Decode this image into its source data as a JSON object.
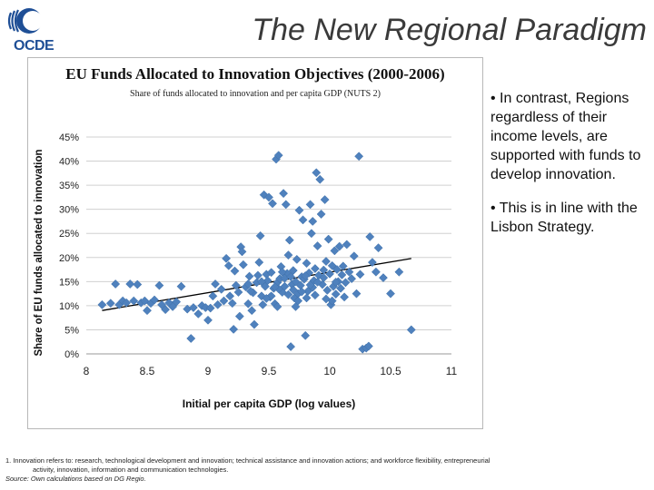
{
  "header": {
    "title": "The New Regional Paradigm",
    "logo_text": "OCDE",
    "logo_icon": "oecd-logo"
  },
  "bullets": [
    "• In contrast, Regions regardless of their income levels, are supported with funds to develop innovation.",
    "• This is in line with the Lisbon Strategy."
  ],
  "footnote": {
    "line1": "1.   Innovation refers to: research, technological development and innovation; technical assistance and innovation actions; and workforce flexibility, entrepreneurial",
    "line2": "activity, innovation, information and communication technologies.",
    "source": "Source: Own calculations based on DG Regio."
  },
  "chart_data": {
    "type": "scatter",
    "title": "EU Funds Allocated to Innovation Objectives (2000-2006)",
    "subtitle": "Share of funds allocated to innovation and per capita GDP (NUTS 2)",
    "xlabel": "Initial per capita GDP (log values)",
    "ylabel": "Share of EU funds allocated to innovation",
    "xlim": [
      8,
      11
    ],
    "ylim": [
      0,
      45
    ],
    "xticks": [
      8,
      8.5,
      9,
      9.5,
      10,
      10.5,
      11
    ],
    "xtick_labels": [
      "8",
      "8.5",
      "9",
      "9.5",
      "10",
      "10.5",
      "11"
    ],
    "yticks": [
      0,
      5,
      10,
      15,
      20,
      25,
      30,
      35,
      40,
      45
    ],
    "ytick_labels": [
      "0%",
      "5%",
      "10%",
      "15%",
      "20%",
      "25%",
      "30%",
      "35%",
      "40%",
      "45%"
    ],
    "grid": "horizontal",
    "marker_color": "#4f81bd",
    "trend_color": "#000000",
    "trendline": {
      "x": [
        8.13,
        10.67
      ],
      "y": [
        9.0,
        19.8
      ]
    },
    "points": [
      [
        8.13,
        10.2
      ],
      [
        8.2,
        10.5
      ],
      [
        8.24,
        14.5
      ],
      [
        8.27,
        10.2
      ],
      [
        8.3,
        11.0
      ],
      [
        8.33,
        10.6
      ],
      [
        8.36,
        14.5
      ],
      [
        8.39,
        11.0
      ],
      [
        8.42,
        14.4
      ],
      [
        8.45,
        10.6
      ],
      [
        8.48,
        11.0
      ],
      [
        8.5,
        9.0
      ],
      [
        8.53,
        10.5
      ],
      [
        8.56,
        11.2
      ],
      [
        8.6,
        14.2
      ],
      [
        8.62,
        10.2
      ],
      [
        8.65,
        9.2
      ],
      [
        8.68,
        10.6
      ],
      [
        8.71,
        9.8
      ],
      [
        8.74,
        10.8
      ],
      [
        8.78,
        14.0
      ],
      [
        8.83,
        9.3
      ],
      [
        8.86,
        3.2
      ],
      [
        8.88,
        9.6
      ],
      [
        8.92,
        8.3
      ],
      [
        8.95,
        10.0
      ],
      [
        8.98,
        9.6
      ],
      [
        9.0,
        7.0
      ],
      [
        9.02,
        9.5
      ],
      [
        9.04,
        12.0
      ],
      [
        9.06,
        14.5
      ],
      [
        9.08,
        10.2
      ],
      [
        9.11,
        13.4
      ],
      [
        9.13,
        11.0
      ],
      [
        9.15,
        19.8
      ],
      [
        9.17,
        18.3
      ],
      [
        9.18,
        12.0
      ],
      [
        9.2,
        10.5
      ],
      [
        9.21,
        5.1
      ],
      [
        9.23,
        14.2
      ],
      [
        9.25,
        12.8
      ],
      [
        9.26,
        7.8
      ],
      [
        9.27,
        22.2
      ],
      [
        9.28,
        21.2
      ],
      [
        9.29,
        18.5
      ],
      [
        9.31,
        13.9
      ],
      [
        9.33,
        10.4
      ],
      [
        9.34,
        16.1
      ],
      [
        9.36,
        9.0
      ],
      [
        9.37,
        12.7
      ],
      [
        9.38,
        6.1
      ],
      [
        9.4,
        14.8
      ],
      [
        9.41,
        16.3
      ],
      [
        9.42,
        19.0
      ],
      [
        9.43,
        24.5
      ],
      [
        9.44,
        12.0
      ],
      [
        9.45,
        10.2
      ],
      [
        9.46,
        33.0
      ],
      [
        9.47,
        14.0
      ],
      [
        9.48,
        16.5
      ],
      [
        9.49,
        15.2
      ],
      [
        9.5,
        32.5
      ],
      [
        9.51,
        11.8
      ],
      [
        9.52,
        16.9
      ],
      [
        9.53,
        31.2
      ],
      [
        9.54,
        13.6
      ],
      [
        9.55,
        10.4
      ],
      [
        9.56,
        40.4
      ],
      [
        9.57,
        14.8
      ],
      [
        9.58,
        41.2
      ],
      [
        9.59,
        15.6
      ],
      [
        9.6,
        18.1
      ],
      [
        9.61,
        12.8
      ],
      [
        9.62,
        33.3
      ],
      [
        9.63,
        14.0
      ],
      [
        9.64,
        31.0
      ],
      [
        9.65,
        16.7
      ],
      [
        9.66,
        20.5
      ],
      [
        9.67,
        23.6
      ],
      [
        9.68,
        1.5
      ],
      [
        9.69,
        14.4
      ],
      [
        9.7,
        17.3
      ],
      [
        9.71,
        11.6
      ],
      [
        9.72,
        15.0
      ],
      [
        9.73,
        19.6
      ],
      [
        9.74,
        12.5
      ],
      [
        9.75,
        29.8
      ],
      [
        9.76,
        14.2
      ],
      [
        9.77,
        16.0
      ],
      [
        9.78,
        27.8
      ],
      [
        9.79,
        15.5
      ],
      [
        9.8,
        3.8
      ],
      [
        9.81,
        18.8
      ],
      [
        9.82,
        13.0
      ],
      [
        9.83,
        16.8
      ],
      [
        9.84,
        31.0
      ],
      [
        9.85,
        25.0
      ],
      [
        9.86,
        27.5
      ],
      [
        9.87,
        15.2
      ],
      [
        9.88,
        12.2
      ],
      [
        9.89,
        37.6
      ],
      [
        9.9,
        22.4
      ],
      [
        9.91,
        16.3
      ],
      [
        9.92,
        36.2
      ],
      [
        9.93,
        29.0
      ],
      [
        9.94,
        14.4
      ],
      [
        9.95,
        17.4
      ],
      [
        9.96,
        32.0
      ],
      [
        9.97,
        19.2
      ],
      [
        9.98,
        13.2
      ],
      [
        9.99,
        23.8
      ],
      [
        10.0,
        16.6
      ],
      [
        10.01,
        10.2
      ],
      [
        10.02,
        18.3
      ],
      [
        10.03,
        14.0
      ],
      [
        10.04,
        21.4
      ],
      [
        10.05,
        12.4
      ],
      [
        10.06,
        17.5
      ],
      [
        10.07,
        15.0
      ],
      [
        10.08,
        22.3
      ],
      [
        10.09,
        13.6
      ],
      [
        10.1,
        16.4
      ],
      [
        10.11,
        18.2
      ],
      [
        10.12,
        11.8
      ],
      [
        10.13,
        14.8
      ],
      [
        10.14,
        22.7
      ],
      [
        10.16,
        17.0
      ],
      [
        10.18,
        15.6
      ],
      [
        10.2,
        20.3
      ],
      [
        10.22,
        12.5
      ],
      [
        10.24,
        41.0
      ],
      [
        10.25,
        16.5
      ],
      [
        10.27,
        1.0
      ],
      [
        10.3,
        1.2
      ],
      [
        10.32,
        1.6
      ],
      [
        10.33,
        24.3
      ],
      [
        10.35,
        19.0
      ],
      [
        10.38,
        17.0
      ],
      [
        10.4,
        22.0
      ],
      [
        10.44,
        15.8
      ],
      [
        10.5,
        12.5
      ],
      [
        10.57,
        17.0
      ],
      [
        10.67,
        5.0
      ],
      [
        9.22,
        17.2
      ],
      [
        9.35,
        13.0
      ],
      [
        9.52,
        12.0
      ],
      [
        9.66,
        12.3
      ],
      [
        9.74,
        11.0
      ],
      [
        9.81,
        11.6
      ],
      [
        9.86,
        13.8
      ],
      [
        9.58,
        13.5
      ],
      [
        9.63,
        15.7
      ],
      [
        9.7,
        13.3
      ],
      [
        9.77,
        12.9
      ],
      [
        9.84,
        14.3
      ],
      [
        9.9,
        14.9
      ],
      [
        9.95,
        15.8
      ],
      [
        10.05,
        14.9
      ],
      [
        9.44,
        15.0
      ],
      [
        9.55,
        13.9
      ],
      [
        9.61,
        17.0
      ],
      [
        9.68,
        16.0
      ],
      [
        9.72,
        9.8
      ],
      [
        9.8,
        16.2
      ],
      [
        9.88,
        17.7
      ],
      [
        9.97,
        11.4
      ],
      [
        10.02,
        11.0
      ],
      [
        9.33,
        14.5
      ],
      [
        9.48,
        11.5
      ],
      [
        9.57,
        9.8
      ]
    ]
  }
}
